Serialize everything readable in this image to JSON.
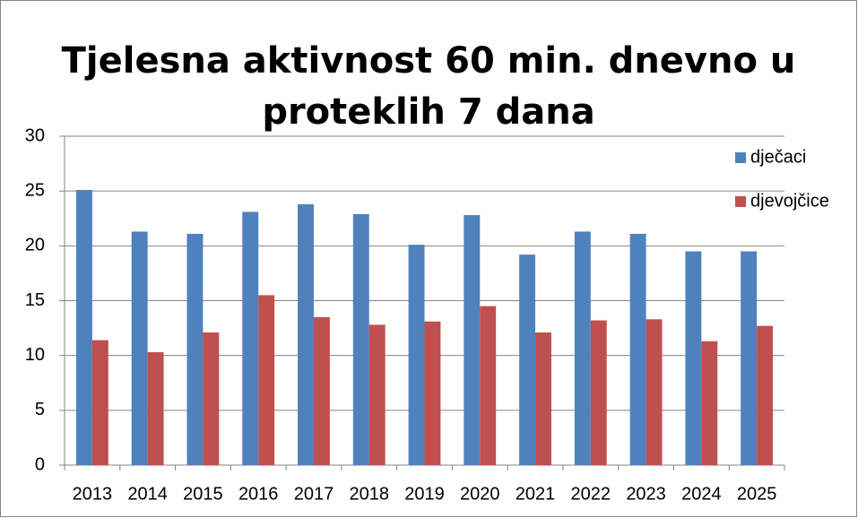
{
  "chart_data": {
    "type": "bar",
    "title": [
      "Tjelesna aktivnost 60 min. dnevno u",
      "proteklih 7 dana"
    ],
    "categories": [
      "2013",
      "2014",
      "2015",
      "2016",
      "2017",
      "2018",
      "2019",
      "2020",
      "2021",
      "2022",
      "2023",
      "2024",
      "2025"
    ],
    "series": [
      {
        "name": "dječaci",
        "color": "#4f81bd",
        "values": [
          25.1,
          21.3,
          21.1,
          23.1,
          23.8,
          22.9,
          20.1,
          22.8,
          19.2,
          21.3,
          21.1,
          19.5,
          19.5
        ]
      },
      {
        "name": "djevojčice",
        "color": "#c0504d",
        "values": [
          11.4,
          10.3,
          12.1,
          15.5,
          13.5,
          12.8,
          13.1,
          14.5,
          12.1,
          13.2,
          13.3,
          11.3,
          12.7
        ]
      }
    ],
    "ylim": [
      0,
      30
    ],
    "yticks": [
      0,
      5,
      10,
      15,
      20,
      25,
      30
    ],
    "grid": true,
    "legend": "right"
  }
}
